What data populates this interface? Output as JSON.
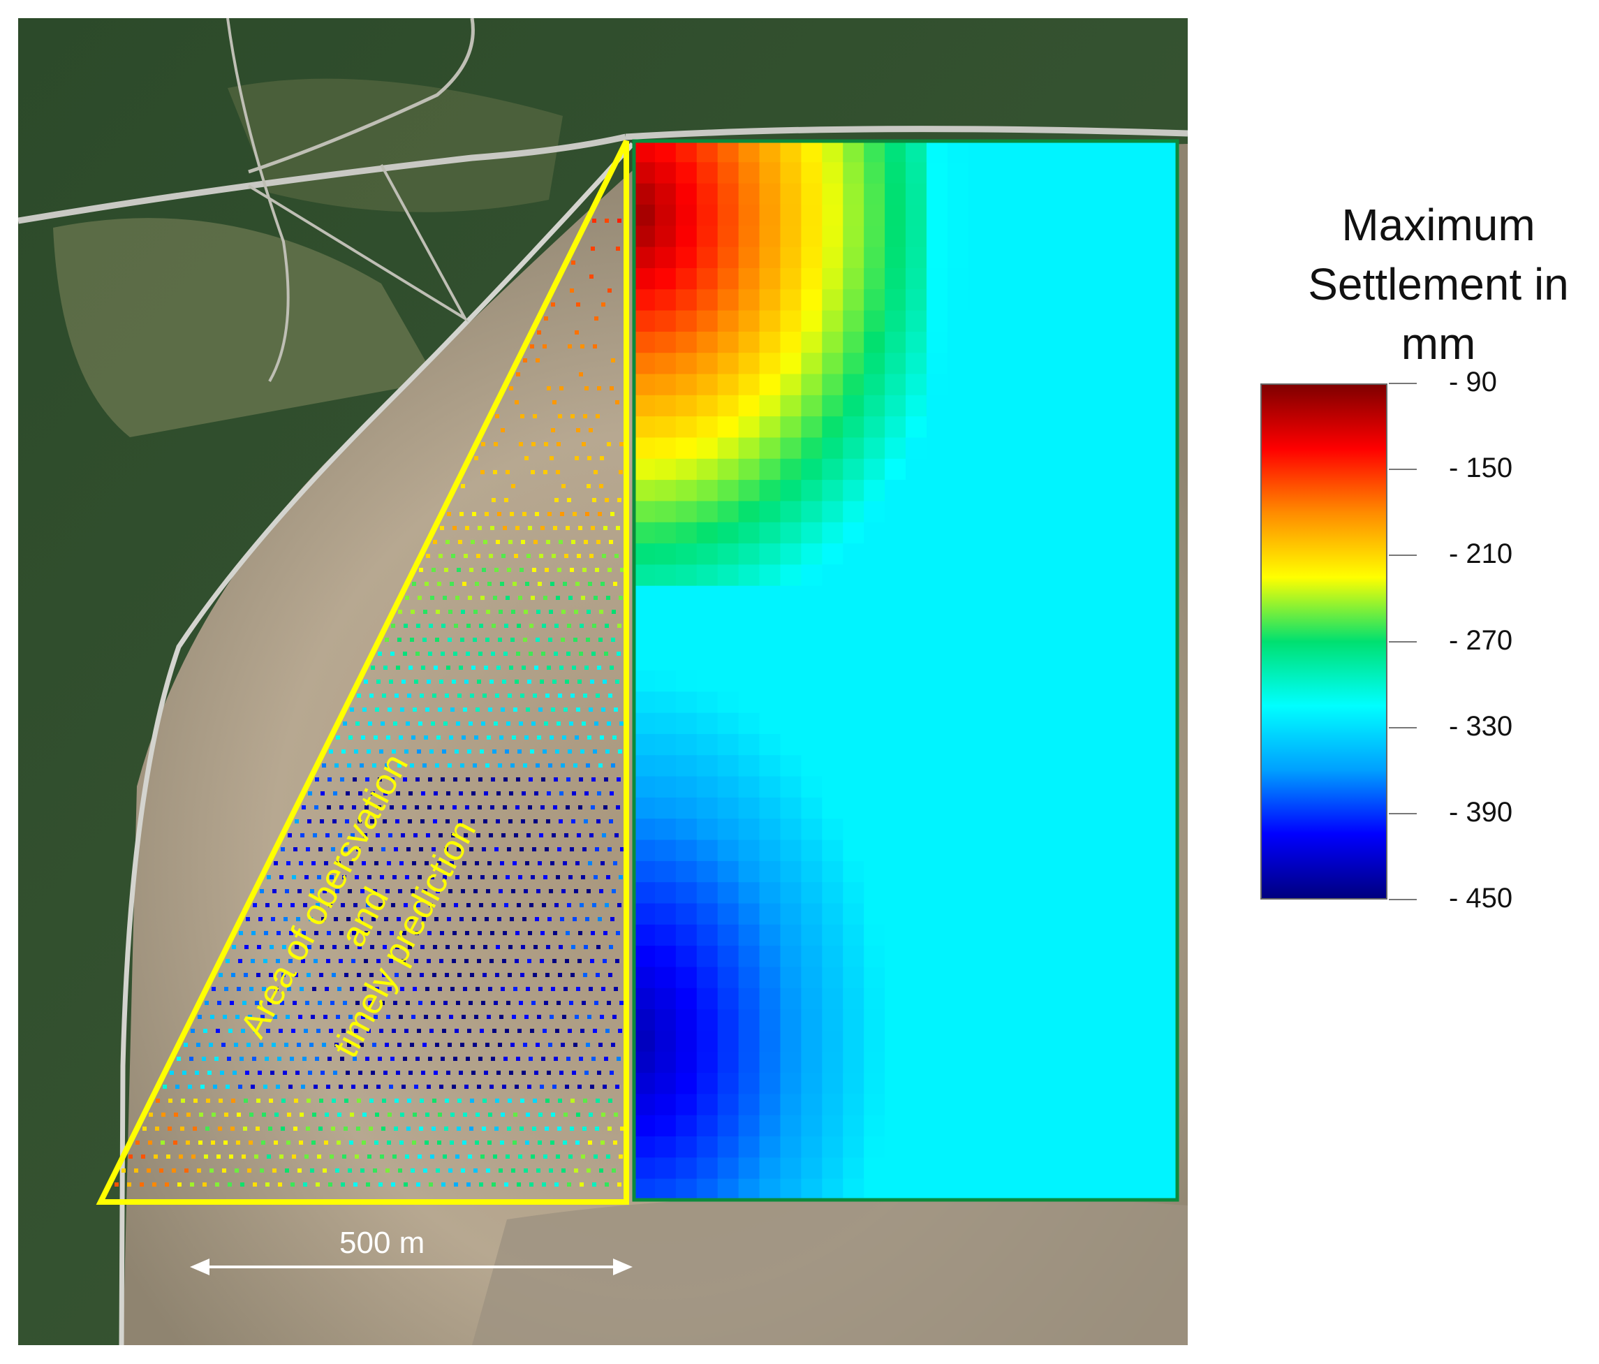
{
  "legend": {
    "title_lines": [
      "Maximum",
      "Settlement in",
      "mm"
    ],
    "ticks": [
      "- 90",
      "- 150",
      "- 210",
      "- 270",
      "- 330",
      "- 390",
      "- 450"
    ],
    "tick_values": [
      -90,
      -150,
      -210,
      -270,
      -330,
      -390,
      -450
    ],
    "range": [
      -450,
      -90
    ],
    "colormap": [
      "#7f0000",
      "#ff0000",
      "#ff8c00",
      "#ffff00",
      "#00e070",
      "#00ffff",
      "#00a0ff",
      "#0000ff",
      "#00007f"
    ]
  },
  "map": {
    "overlay_lines": [
      "Area of obersvation",
      "and",
      "timely prediction"
    ],
    "scale_label": "500 m",
    "triangle_color": "#ffff00",
    "rectangle_border_color": "#0b8a3c"
  }
}
